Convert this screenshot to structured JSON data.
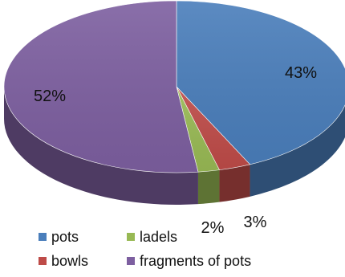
{
  "chart_data": {
    "type": "pie",
    "title": "",
    "categories": [
      "pots",
      "bowls",
      "ladels",
      "fragments of pots"
    ],
    "values": [
      43,
      3,
      2,
      52
    ],
    "data_labels": [
      "43%",
      "3%",
      "2%",
      "52%"
    ],
    "colors": [
      "#4a7ebb",
      "#be4b48",
      "#98b954",
      "#7d5fa0"
    ],
    "style": "3d-tilted",
    "legend_position": "bottom"
  }
}
